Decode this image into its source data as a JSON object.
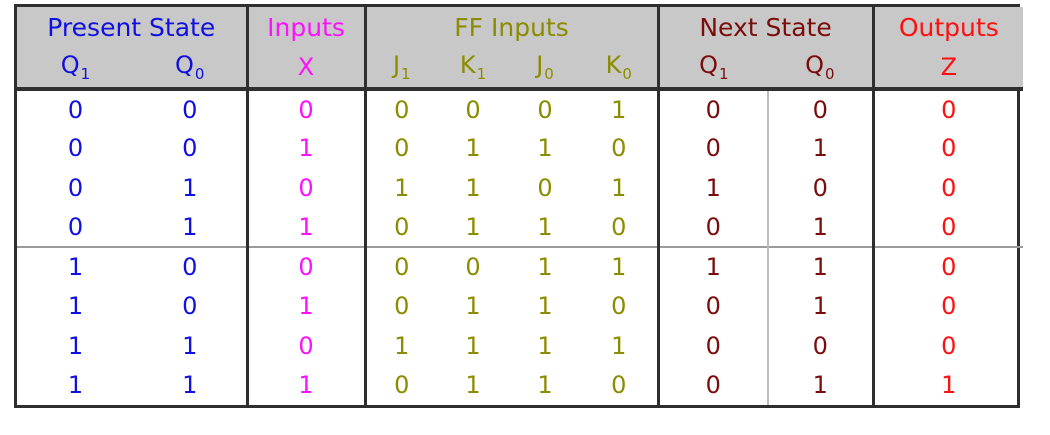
{
  "groups": {
    "present_state": "Present State",
    "inputs": "Inputs",
    "ff_inputs": "FF Inputs",
    "next_state": "Next State",
    "outputs": "Outputs"
  },
  "columns": [
    {
      "base": "Q",
      "sub": "1"
    },
    {
      "base": "Q",
      "sub": "0"
    },
    {
      "base": "X",
      "sub": ""
    },
    {
      "base": "J",
      "sub": "1"
    },
    {
      "base": "K",
      "sub": "1"
    },
    {
      "base": "J",
      "sub": "0"
    },
    {
      "base": "K",
      "sub": "0"
    },
    {
      "base": "Q",
      "sub": "1"
    },
    {
      "base": "Q",
      "sub": "0"
    },
    {
      "base": "Z",
      "sub": ""
    }
  ],
  "rows": [
    [
      "0",
      "0",
      "0",
      "0",
      "0",
      "0",
      "1",
      "0",
      "0",
      "0"
    ],
    [
      "0",
      "0",
      "1",
      "0",
      "1",
      "1",
      "0",
      "0",
      "1",
      "0"
    ],
    [
      "0",
      "1",
      "0",
      "1",
      "1",
      "0",
      "1",
      "1",
      "0",
      "0"
    ],
    [
      "0",
      "1",
      "1",
      "0",
      "1",
      "1",
      "0",
      "0",
      "1",
      "0"
    ],
    [
      "1",
      "0",
      "0",
      "0",
      "0",
      "1",
      "1",
      "1",
      "1",
      "0"
    ],
    [
      "1",
      "0",
      "1",
      "0",
      "1",
      "1",
      "0",
      "0",
      "1",
      "0"
    ],
    [
      "1",
      "1",
      "0",
      "1",
      "1",
      "1",
      "1",
      "0",
      "0",
      "0"
    ],
    [
      "1",
      "1",
      "1",
      "0",
      "1",
      "1",
      "0",
      "0",
      "1",
      "1"
    ]
  ],
  "colors": {
    "present_state": "#1010e0",
    "inputs": "#ff10ff",
    "ff_inputs": "#8c8c00",
    "next_state": "#7a0c0c",
    "outputs": "#ff1010",
    "header_bg": "#c8c8c8"
  }
}
